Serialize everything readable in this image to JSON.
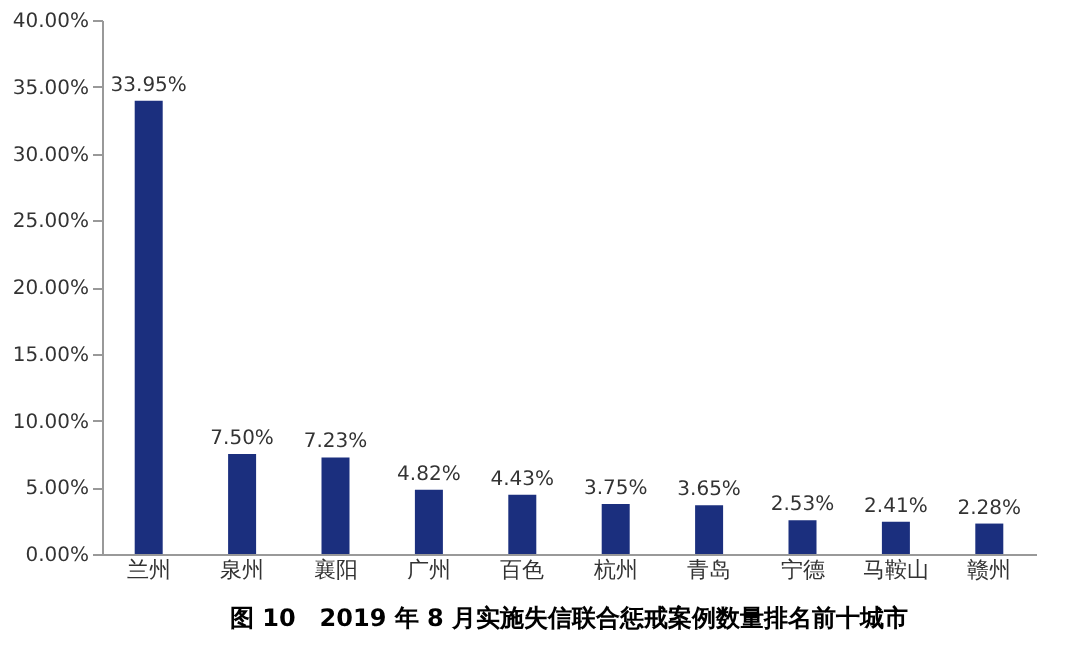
{
  "chart_data": {
    "type": "bar",
    "title": "图 10　2019 年 8 月实施失信联合惩戒案例数量排名前十城市",
    "categories": [
      "兰州",
      "泉州",
      "襄阳",
      "广州",
      "百色",
      "杭州",
      "青岛",
      "宁德",
      "马鞍山",
      "赣州"
    ],
    "values": [
      33.95,
      7.5,
      7.23,
      4.82,
      4.43,
      3.75,
      3.65,
      2.53,
      2.41,
      2.28
    ],
    "value_labels": [
      "33.95%",
      "7.50%",
      "7.23%",
      "4.82%",
      "4.43%",
      "3.75%",
      "3.65%",
      "2.53%",
      "2.41%",
      "2.28%"
    ],
    "color": "#1b2f7e",
    "ylim": [
      0,
      40
    ],
    "yticks": [
      {
        "value": 0,
        "label": "0.00%"
      },
      {
        "value": 5,
        "label": "5.00%"
      },
      {
        "value": 10,
        "label": "10.00%"
      },
      {
        "value": 15,
        "label": "15.00%"
      },
      {
        "value": 20,
        "label": "20.00%"
      },
      {
        "value": 25,
        "label": "25.00%"
      },
      {
        "value": 30,
        "label": "30.00%"
      },
      {
        "value": 35,
        "label": "35.00%"
      },
      {
        "value": 40,
        "label": "40.00%"
      }
    ],
    "grid": false
  }
}
